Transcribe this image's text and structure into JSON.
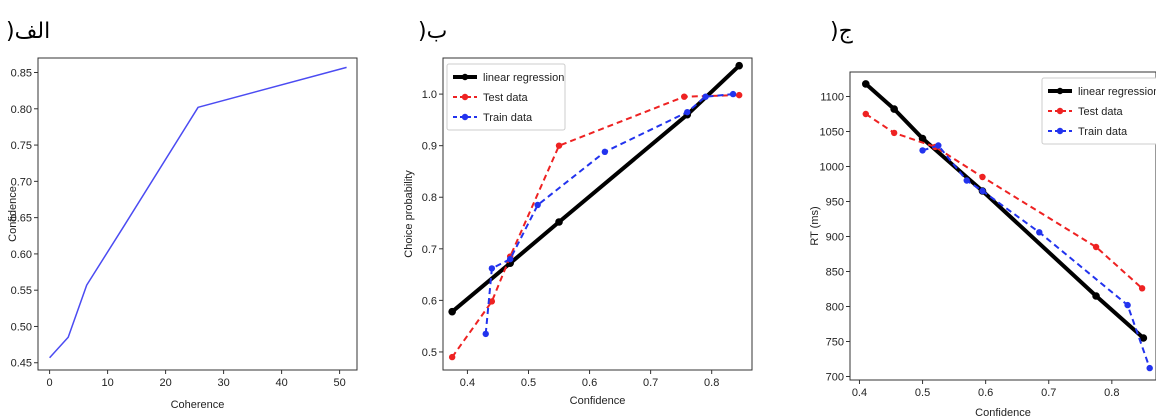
{
  "panels": [
    {
      "label": ")الف"
    },
    {
      "label": ")ب"
    },
    {
      "label": ")ج"
    }
  ],
  "chart_data": [
    {
      "type": "line",
      "xlabel": "Coherence",
      "ylabel": "Confidence",
      "xlim": [
        -2,
        53
      ],
      "ylim": [
        0.44,
        0.87
      ],
      "xticks": [
        0,
        10,
        20,
        30,
        40,
        50
      ],
      "yticks": [
        0.45,
        0.5,
        0.55,
        0.6,
        0.65,
        0.7,
        0.75,
        0.8,
        0.85
      ],
      "ytick_labels": [
        "0.45",
        "0.50",
        "0.55",
        "0.60",
        "0.65",
        "0.70",
        "0.75",
        "0.80",
        "0.85"
      ],
      "series": [
        {
          "color": "#4b4bf2",
          "style": "solid",
          "marker": "none",
          "x": [
            0,
            3.2,
            6.4,
            12.8,
            25.6,
            51.2
          ],
          "y": [
            0.457,
            0.485,
            0.557,
            0.638,
            0.802,
            0.857
          ]
        }
      ]
    },
    {
      "type": "line",
      "xlabel": "Confidence",
      "ylabel": "Choice probability",
      "xlim": [
        0.36,
        0.866
      ],
      "ylim": [
        0.465,
        1.07
      ],
      "xticks": [
        0.4,
        0.5,
        0.6,
        0.7,
        0.8
      ],
      "yticks": [
        0.5,
        0.6,
        0.7,
        0.8,
        0.9,
        1.0
      ],
      "ytick_labels": [
        "0.5",
        "0.6",
        "0.7",
        "0.8",
        "0.9",
        "1.0"
      ],
      "legend_position": "top-left",
      "series": [
        {
          "name": "linear regression",
          "color": "#000000",
          "style": "solid",
          "width": 4,
          "x": [
            0.375,
            0.47,
            0.55,
            0.76,
            0.845
          ],
          "y": [
            0.578,
            0.672,
            0.752,
            0.96,
            1.055
          ]
        },
        {
          "name": "Test data",
          "color": "#ee2222",
          "style": "dashed",
          "width": 2,
          "x": [
            0.375,
            0.44,
            0.47,
            0.55,
            0.755,
            0.845
          ],
          "y": [
            0.49,
            0.598,
            0.685,
            0.9,
            0.995,
            0.998
          ]
        },
        {
          "name": "Train data",
          "color": "#2233ee",
          "style": "dashed",
          "width": 2,
          "x": [
            0.43,
            0.44,
            0.47,
            0.515,
            0.625,
            0.76,
            0.79,
            0.835
          ],
          "y": [
            0.535,
            0.662,
            0.68,
            0.785,
            0.888,
            0.965,
            0.995,
            1.0
          ]
        }
      ]
    },
    {
      "type": "line",
      "xlabel": "Confidence",
      "ylabel": "RT (ms)",
      "xlim": [
        0.385,
        0.87
      ],
      "ylim": [
        695,
        1135
      ],
      "xticks": [
        0.4,
        0.5,
        0.6,
        0.7,
        0.8
      ],
      "yticks": [
        700,
        750,
        800,
        850,
        900,
        950,
        1000,
        1050,
        1100
      ],
      "ytick_labels": [
        "700",
        "750",
        "800",
        "850",
        "900",
        "950",
        "1000",
        "1050",
        "1100"
      ],
      "legend_position": "top-right",
      "series": [
        {
          "name": "linear regression",
          "color": "#000000",
          "style": "solid",
          "width": 4,
          "x": [
            0.41,
            0.455,
            0.5,
            0.595,
            0.775,
            0.85
          ],
          "y": [
            1118,
            1082,
            1040,
            965,
            815,
            755
          ]
        },
        {
          "name": "Test data",
          "color": "#ee2222",
          "style": "dashed",
          "width": 2,
          "x": [
            0.41,
            0.455,
            0.52,
            0.595,
            0.775,
            0.848
          ],
          "y": [
            1075,
            1048,
            1028,
            985,
            885,
            826
          ]
        },
        {
          "name": "Train data",
          "color": "#2233ee",
          "style": "dashed",
          "width": 2,
          "x": [
            0.5,
            0.525,
            0.57,
            0.595,
            0.685,
            0.825,
            0.86
          ],
          "y": [
            1023,
            1030,
            980,
            965,
            906,
            802,
            712
          ]
        }
      ]
    }
  ]
}
